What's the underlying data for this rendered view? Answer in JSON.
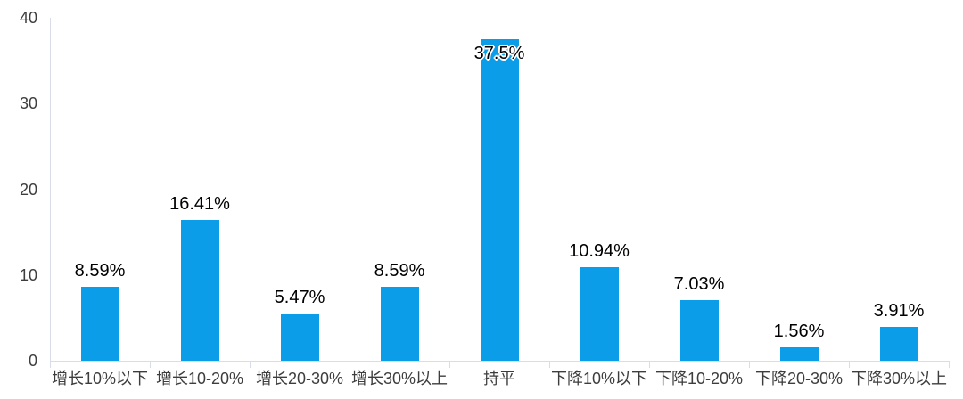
{
  "chart_data": {
    "type": "bar",
    "title": "",
    "xlabel": "",
    "ylabel": "",
    "categories": [
      "增长10%以下",
      "增长10-20%",
      "增长20-30%",
      "增长30%以上",
      "持平",
      "下降10%以下",
      "下降10-20%",
      "下降20-30%",
      "下降30%以上"
    ],
    "values": [
      8.59,
      16.41,
      5.47,
      8.59,
      37.5,
      10.94,
      7.03,
      1.56,
      3.91
    ],
    "data_labels": [
      "8.59%",
      "16.41%",
      "5.47%",
      "8.59%",
      "37.5%",
      "10.94%",
      "7.03%",
      "1.56%",
      "3.91%"
    ],
    "ylim": [
      0,
      40
    ],
    "yticks": [
      0,
      10,
      20,
      30,
      40
    ],
    "ytick_labels": [
      "0",
      "10",
      "20",
      "30",
      "40"
    ],
    "grid": false,
    "legend": [],
    "legend_position": "none",
    "colors": {
      "bar": "#0c9de8",
      "axis_line": "#d9dde8",
      "value_label": "#000000",
      "axis_label": "#3d3d3d"
    }
  }
}
